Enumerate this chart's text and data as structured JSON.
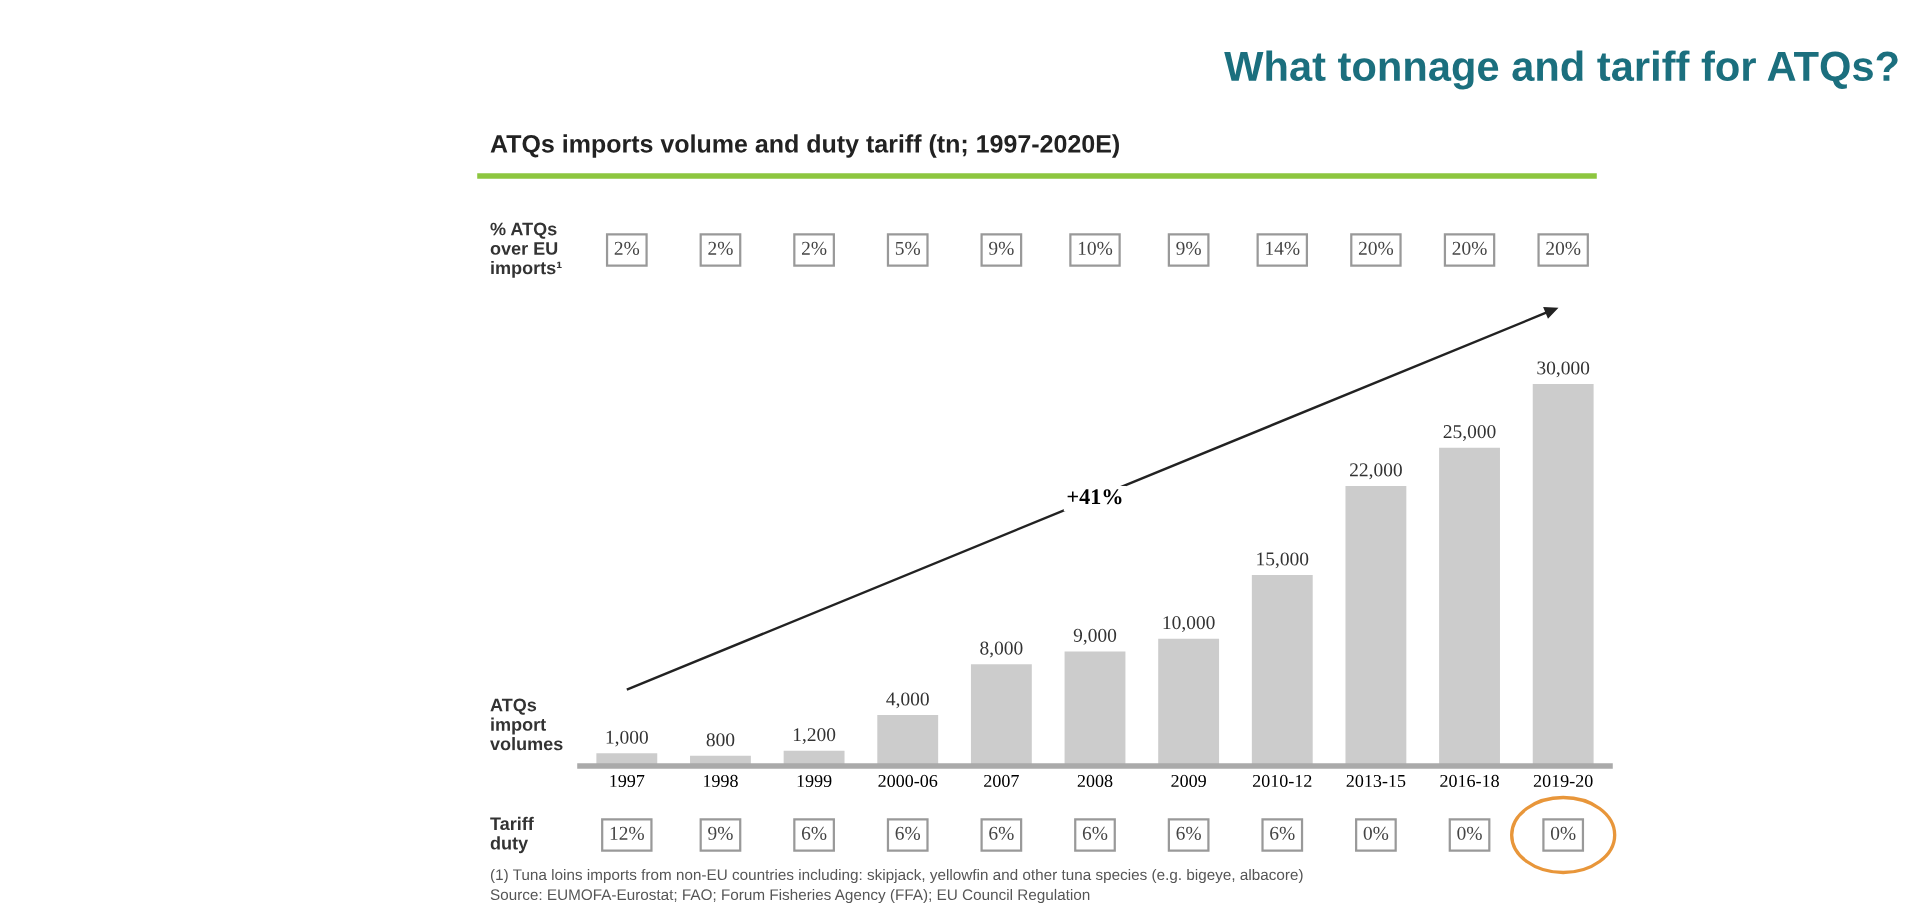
{
  "chart_data": [
    {
      "type": "other",
      "title": "What tonnage and tariff for ATQs?",
      "subtitle": "ATQs imports volume and duty tariff (tn; 1997-2020E)",
      "ylabel": "% ATQs\nover EU\nimports¹",
      "annotations": [
        "2%",
        "2%",
        "2%",
        "5%",
        "9%",
        "10%",
        "9%",
        "14%",
        "20%",
        "20%",
        "20%"
      ]
    },
    {
      "type": "bar",
      "categories": [
        "1997",
        "1998",
        "1999",
        "2000-06",
        "2007",
        "2008",
        "2009",
        "2010-12",
        "2013-15",
        "2016-18",
        "2019-20"
      ],
      "values": [
        1000,
        800,
        1200,
        4000,
        8000,
        9000,
        10000,
        15000,
        22000,
        25000,
        30000
      ],
      "color": "#cccccc",
      "value_labels": [
        "1,000",
        "800",
        "1,200",
        "4,000",
        "8,000",
        "9,000",
        "10,000",
        "15,000",
        "22,000",
        "25,000",
        "30,000"
      ],
      "ylabel": "ATQs\nimport\nvolumes",
      "annotations": [
        "+41%",
        "(1) Tuna loins imports from non-EU countries including: skipjack, yellowfin and other tuna species (e.g. bigeye, albacore)",
        "Source: EUMOFA-Eurostat; FAO; Forum Fisheries Agency (FFA); EU Council Regulation"
      ]
    },
    {
      "type": "other",
      "ylabel": "Tariff\nduty",
      "annotations": [
        "12%",
        "9%",
        "6%",
        "6%",
        "6%",
        "6%",
        "6%",
        "6%",
        "0%",
        "0%",
        "0%"
      ]
    }
  ]
}
